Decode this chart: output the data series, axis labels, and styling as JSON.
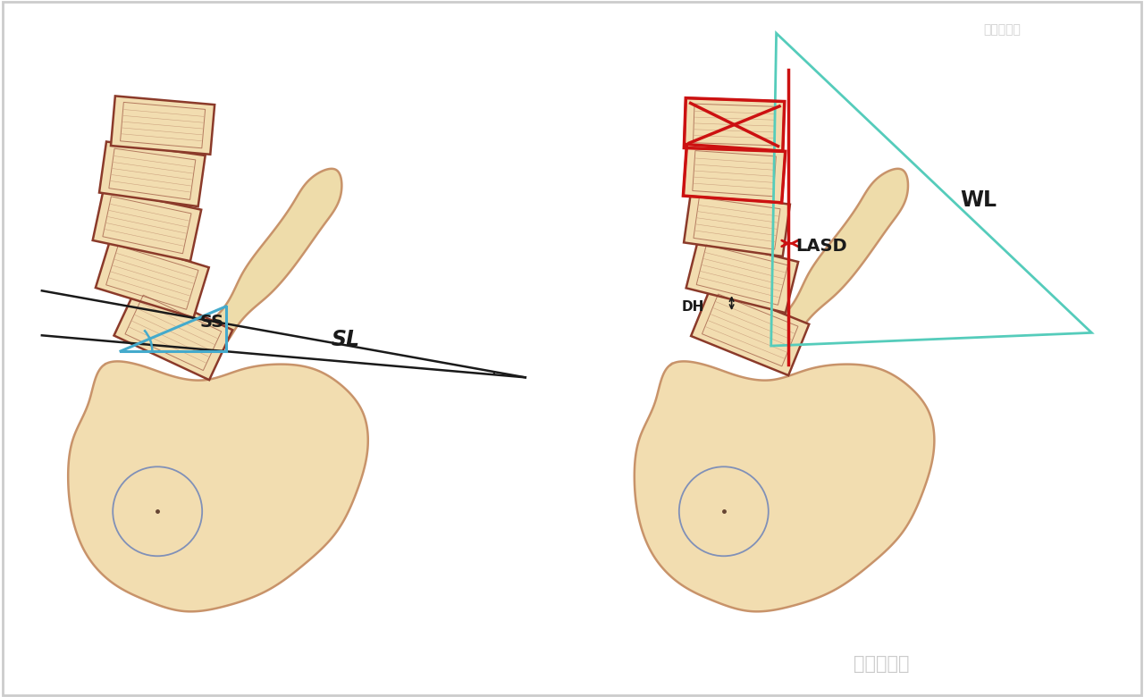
{
  "bg_color": "#ffffff",
  "vertebra_fill": "#f2ddb0",
  "vertebra_edge": "#8b3a2a",
  "pelvis_fill": "#f2ddb0",
  "pelvis_edge": "#c8936a",
  "sacrum_fill": "#eedcaa",
  "circle_fill": "#f2ddb0",
  "circle_edge": "#8090b8",
  "red_color": "#cc1111",
  "blue_color": "#44aacc",
  "black_color": "#1a1a1a",
  "cyan_color": "#55ccbb",
  "gray_color": "#bbbbbb",
  "label_SL": "SL",
  "label_SS": "SS",
  "label_WL": "WL",
  "label_LASD": "LASD",
  "label_DH": "DH",
  "watermark_bottom": "骨关节空间",
  "watermark_top": "小骨科学会"
}
